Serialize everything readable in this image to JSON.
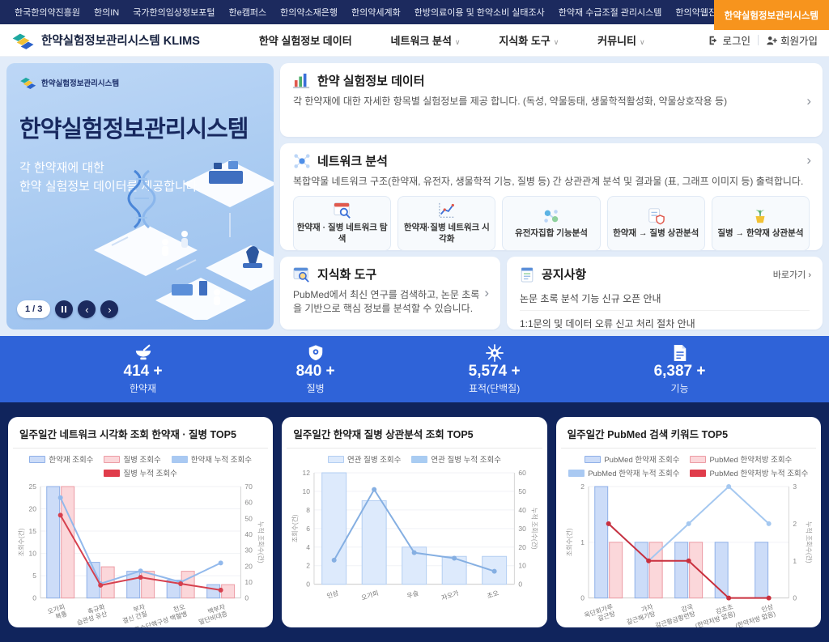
{
  "topbar": {
    "items": [
      "한국한의약진흥원",
      "한의IN",
      "국가한의임상정보포털",
      "한e캠퍼스",
      "한의약소재은행",
      "한의약세계화",
      "한방의료이용 및 한약소비 실태조사",
      "한약재 수급조절 관리시스템",
      "한의약웹진"
    ],
    "active": "한약실험정보관리시스템"
  },
  "header": {
    "logo_title": "한약실험정보관리시스템 KLIMS",
    "nav": [
      "한약 실험정보 데이터",
      "네트워크 분석",
      "지식화 도구",
      "커뮤니티"
    ],
    "login": "로그인",
    "signup": "회원가입"
  },
  "icons": {
    "chevron_down": "∨",
    "chevron_right": "›",
    "prev": "‹",
    "next": "›"
  },
  "hero": {
    "logo_caption": "한약실험정보관리시스템",
    "title": "한약실험정보관리시스템",
    "subtitle_line1": "각 한약재에 대한",
    "subtitle_line2": "한약 실험정보 데이터를 제공합니다.",
    "carousel_page": "1 / 3"
  },
  "cards": {
    "data_card": {
      "title": "한약 실험정보 데이터",
      "desc": "각 한약재에 대한 자세한 항목별 실험정보를 제공 합니다. (독성, 약물동태, 생물학적활성화, 약물상호작용 등)"
    },
    "network_card": {
      "title": "네트워크 분석",
      "desc": "복합약물 네트워크 구조(한약재, 유전자, 생물학적 기능, 질병 등) 간 상관관계 분석 및 결과물 (표, 그래프 이미지 등) 출력합니다.",
      "buttons": [
        "한약재 · 질병 네트워크 탐색",
        "한약재·질병 네트워크 시각화",
        "유전자집합 기능분석",
        "한약재 → 질병 상관분석",
        "질병 → 한약재 상관분석"
      ]
    },
    "knowledge_card": {
      "title": "지식화 도구",
      "desc": "PubMed에서 최신 연구를 검색하고, 논문 초록을 기반으로 핵심 정보를 분석할 수 있습니다."
    },
    "notice_card": {
      "title": "공지사항",
      "more": "바로가기 ›",
      "items": [
        "논문 초록 분석 기능 신규 오픈 안내",
        "1:1문의 및 데이터 오류 신고 처리 절차 안내"
      ]
    }
  },
  "stats": [
    {
      "value": "414 +",
      "label": "한약재"
    },
    {
      "value": "840 +",
      "label": "질병"
    },
    {
      "value": "5,574 +",
      "label": "표적(단백질)"
    },
    {
      "value": "6,387 +",
      "label": "기능"
    }
  ],
  "chart_data": [
    {
      "type": "bar+line",
      "title": "일주일간 네트워크 시각화 조회 한약재 · 질병 TOP5",
      "categories": [
        [
          "오가피",
          "복통"
        ],
        [
          "촉규화",
          "습관성 유산"
        ],
        [
          "부자",
          "결신 간질"
        ],
        [
          "천오",
          "급성 골수단핵구성 백혈병"
        ],
        [
          "백부자",
          "말단비대증"
        ]
      ],
      "left_axis": {
        "label": "조회수(건)",
        "max": 25,
        "ticks": [
          0,
          5,
          10,
          15,
          20,
          25
        ]
      },
      "right_axis": {
        "label": "누적 조회수(건)",
        "max": 70,
        "ticks": [
          0,
          10,
          20,
          30,
          40,
          50,
          60,
          70
        ]
      },
      "bar_series": [
        {
          "name": "한약재 조회수",
          "values": [
            25,
            8,
            6,
            4,
            3
          ],
          "fill": "#ccdcf8",
          "stroke": "#8fb0e8"
        },
        {
          "name": "질병 조회수",
          "values": [
            25,
            7,
            6,
            6,
            3
          ],
          "fill": "#fbd7da",
          "stroke": "#ec9ba4"
        }
      ],
      "line_series": [
        {
          "name": "한약재 누적 조회수",
          "values": [
            63,
            9,
            17,
            10,
            22
          ],
          "color": "#92b9ec",
          "swatch": "#a9c9f2"
        },
        {
          "name": "질병 누적 조회수",
          "values": [
            52,
            8,
            13,
            9,
            5
          ],
          "color": "#d6404e",
          "swatch": "#e03c4b"
        }
      ],
      "legend_position": "top",
      "grid": true
    },
    {
      "type": "bar+line",
      "title": "일주일간 한약재 질병 상관분석 조회 TOP5",
      "categories": [
        [
          "인삼"
        ],
        [
          "오가피"
        ],
        [
          "우슬"
        ],
        [
          "자오가"
        ],
        [
          "초오"
        ]
      ],
      "left_axis": {
        "label": "조회수(건)",
        "max": 12,
        "ticks": [
          0,
          2,
          4,
          6,
          8,
          10,
          12
        ]
      },
      "right_axis": {
        "label": "누적 조회수(건)",
        "max": 60,
        "ticks": [
          0,
          10,
          20,
          30,
          40,
          50,
          60
        ]
      },
      "bar_series": [
        {
          "name": "연관 질병 조회수",
          "values": [
            12,
            9,
            4,
            3,
            3
          ],
          "fill": "#ddeafc",
          "stroke": "#b3cef2"
        }
      ],
      "line_series": [
        {
          "name": "연관 질병 누적 조회수",
          "values": [
            13,
            51,
            17,
            14,
            7
          ],
          "color": "#85afe2",
          "swatch": "#a9ccf2"
        }
      ],
      "legend_position": "top",
      "grid": true
    },
    {
      "type": "bar+line",
      "title": "일주일간 PubMed 검색 키워드 TOP5",
      "categories": [
        [
          "옥단회가루",
          "갈근탕"
        ],
        [
          "가자",
          "갈근해기탕"
        ],
        [
          "감국",
          "갈근황금황련탕"
        ],
        [
          "감초초",
          "(한약처방 없음)"
        ],
        [
          "인삼",
          "(한약처방 없음)"
        ]
      ],
      "left_axis": {
        "label": "조회수(건)",
        "max": 2,
        "ticks": [
          0,
          1,
          2
        ]
      },
      "right_axis": {
        "label": "누적 조회수(건)",
        "max": 3,
        "ticks": [
          0,
          1,
          2,
          3
        ]
      },
      "bar_series": [
        {
          "name": "PubMed 한약재 조회수",
          "values": [
            2,
            1,
            1,
            1,
            1
          ],
          "fill": "#ccdcf8",
          "stroke": "#8fb0e8"
        },
        {
          "name": "PubMed 한약처방 조회수",
          "values": [
            1,
            1,
            1,
            0,
            0
          ],
          "fill": "#fbd7da",
          "stroke": "#ec9ba4"
        }
      ],
      "line_series": [
        {
          "name": "PubMed 한약재 누적 조회수",
          "values": [
            2,
            1,
            2,
            3,
            2
          ],
          "color": "#a5c8f0",
          "swatch": "#a9c9f2"
        },
        {
          "name": "PubMed 한약처방 누적 조회수",
          "values": [
            2,
            1,
            1,
            0,
            0
          ],
          "color": "#c9303e",
          "swatch": "#e03c4b"
        }
      ],
      "legend_position": "top",
      "grid": true
    }
  ]
}
